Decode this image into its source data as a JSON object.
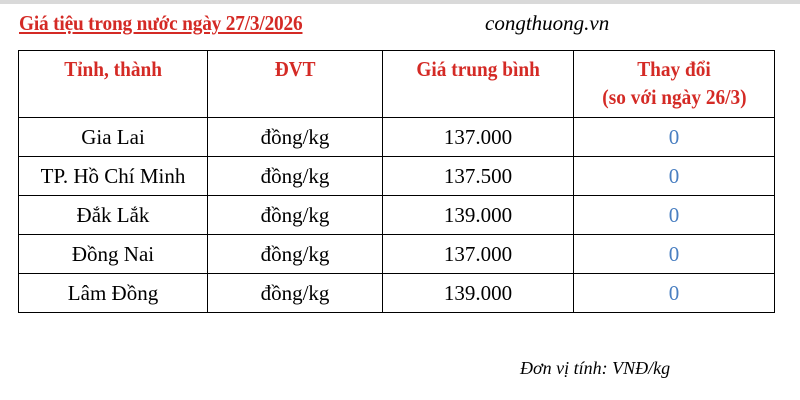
{
  "title": "Giá tiệu trong nước ngày 27/3/2026",
  "source": "congthuong.vn",
  "colors": {
    "title": "#d42a25",
    "change_value": "#4a7fc1"
  },
  "table": {
    "headers": [
      "Tỉnh, thành",
      "ĐVT",
      "Giá trung bình",
      "Thay đổi",
      "(so với ngày 26/3)"
    ],
    "rows": [
      [
        "Gia Lai",
        "đồng/kg",
        "137.000",
        "0"
      ],
      [
        "TP. Hồ Chí Minh",
        "đồng/kg",
        "137.500",
        "0"
      ],
      [
        "Đắk Lắk",
        "đồng/kg",
        "139.000",
        "0"
      ],
      [
        "Đồng Nai",
        "đồng/kg",
        "137.000",
        "0"
      ],
      [
        "Lâm Đồng",
        "đồng/kg",
        "139.000",
        "0"
      ]
    ]
  },
  "unit_note": "Đơn vị tính: VNĐ/kg"
}
